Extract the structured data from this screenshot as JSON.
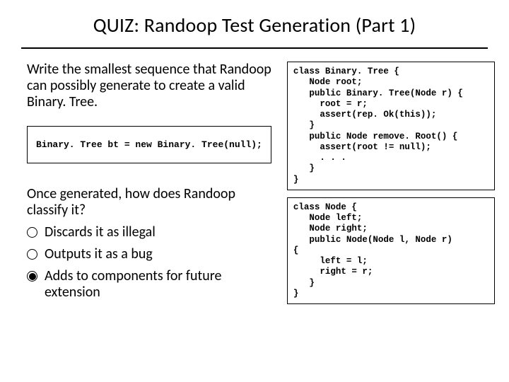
{
  "title": "QUIZ: Randoop Test Generation (Part 1)",
  "prompt": "Write the smallest sequence that Randoop can possibly generate to create a valid Binary. Tree.",
  "answer_code": "Binary. Tree bt = new Binary. Tree(null);",
  "question2": "Once generated, how does Randoop classify it?",
  "options": [
    {
      "label": "Discards it as illegal",
      "selected": false
    },
    {
      "label": "Outputs it as a bug",
      "selected": false
    },
    {
      "label": "Adds to components for future extension",
      "selected": true
    }
  ],
  "code_binarytree": "class Binary. Tree {\n   Node root;\n   public Binary. Tree(Node r) {\n     root = r;\n     assert(rep. Ok(this));\n   }\n   public Node remove. Root() {\n     assert(root != null);\n     . . .\n   }\n}",
  "code_node": "class Node {\n   Node left;\n   Node right;\n   public Node(Node l, Node r)\n{\n     left = l;\n     right = r;\n   }\n}",
  "style": {
    "title_fontsize": 28,
    "prose_fontsize": 20,
    "code_fontsize": 12.5,
    "border_color": "#000000",
    "background": "#ffffff"
  }
}
